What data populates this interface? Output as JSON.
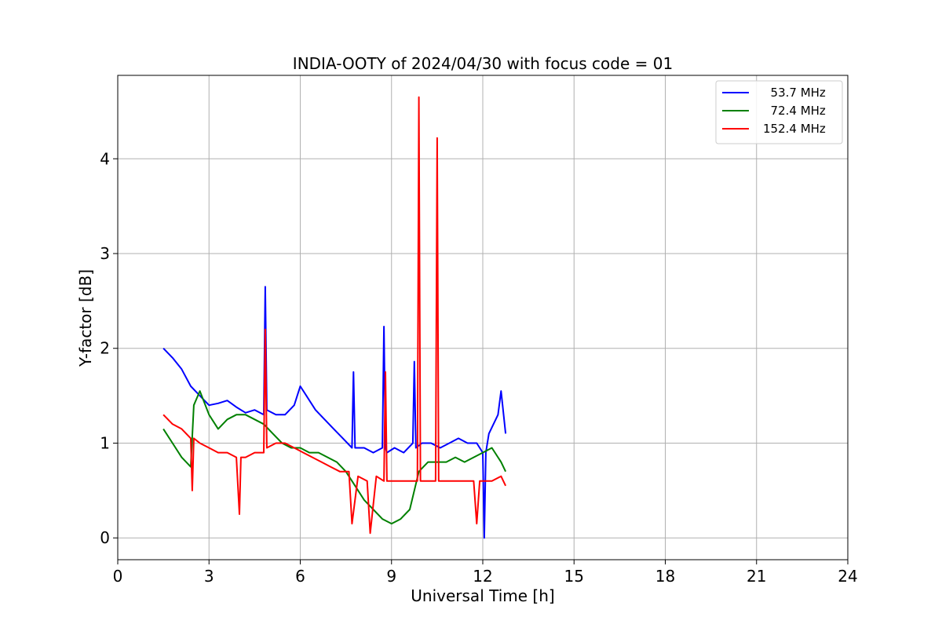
{
  "chart_data": {
    "type": "line",
    "title": "INDIA-OOTY of 2024/04/30 with focus code = 01",
    "xlabel": "Universal Time [h]",
    "ylabel": "Y-factor [dB]",
    "xlim": [
      0,
      24
    ],
    "ylim": [
      -0.23,
      4.88
    ],
    "xticks": [
      0,
      3,
      6,
      9,
      12,
      15,
      18,
      21,
      24
    ],
    "yticks": [
      0,
      1,
      2,
      3,
      4
    ],
    "grid": true,
    "legend_position": "top-right",
    "series": [
      {
        "name": "  53.7 MHz",
        "color": "#0000ff",
        "x": [
          1.5,
          1.8,
          2.1,
          2.4,
          2.7,
          3.0,
          3.3,
          3.6,
          3.9,
          4.2,
          4.5,
          4.8,
          4.85,
          4.9,
          5.2,
          5.5,
          5.8,
          6.0,
          6.2,
          6.5,
          6.8,
          7.1,
          7.4,
          7.7,
          7.75,
          7.8,
          8.1,
          8.4,
          8.7,
          8.75,
          8.8,
          8.85,
          9.1,
          9.4,
          9.7,
          9.75,
          9.8,
          10.0,
          10.3,
          10.6,
          10.9,
          11.2,
          11.5,
          11.8,
          12.0,
          12.05,
          12.1,
          12.2,
          12.5,
          12.6,
          12.75
        ],
        "y": [
          2.0,
          1.9,
          1.78,
          1.6,
          1.5,
          1.4,
          1.42,
          1.45,
          1.38,
          1.32,
          1.35,
          1.3,
          2.65,
          1.35,
          1.3,
          1.3,
          1.4,
          1.6,
          1.5,
          1.35,
          1.25,
          1.15,
          1.05,
          0.95,
          1.75,
          0.95,
          0.95,
          0.9,
          0.95,
          2.23,
          0.95,
          0.9,
          0.95,
          0.9,
          1.0,
          1.86,
          0.95,
          1.0,
          1.0,
          0.95,
          1.0,
          1.05,
          1.0,
          1.0,
          0.9,
          0.0,
          0.9,
          1.1,
          1.3,
          1.55,
          1.1
        ]
      },
      {
        "name": "  72.4 MHz",
        "color": "#008000",
        "x": [
          1.5,
          1.8,
          2.1,
          2.4,
          2.5,
          2.7,
          3.0,
          3.3,
          3.6,
          3.9,
          4.2,
          4.5,
          4.8,
          5.1,
          5.4,
          5.7,
          6.0,
          6.3,
          6.6,
          6.9,
          7.2,
          7.5,
          7.8,
          8.1,
          8.4,
          8.7,
          9.0,
          9.3,
          9.6,
          9.9,
          10.2,
          10.5,
          10.8,
          11.1,
          11.4,
          11.7,
          12.0,
          12.3,
          12.6,
          12.75
        ],
        "y": [
          1.15,
          1.0,
          0.85,
          0.75,
          1.4,
          1.55,
          1.3,
          1.15,
          1.25,
          1.3,
          1.3,
          1.25,
          1.2,
          1.1,
          1.0,
          0.95,
          0.95,
          0.9,
          0.9,
          0.85,
          0.8,
          0.7,
          0.55,
          0.4,
          0.3,
          0.2,
          0.15,
          0.2,
          0.3,
          0.7,
          0.8,
          0.8,
          0.8,
          0.85,
          0.8,
          0.85,
          0.9,
          0.95,
          0.8,
          0.7
        ]
      },
      {
        "name": "152.4 MHz",
        "color": "#ff0000",
        "x": [
          1.5,
          1.8,
          2.1,
          2.4,
          2.45,
          2.5,
          2.7,
          3.0,
          3.3,
          3.6,
          3.9,
          4.0,
          4.05,
          4.2,
          4.5,
          4.8,
          4.85,
          4.9,
          5.2,
          5.5,
          5.8,
          6.1,
          6.4,
          6.7,
          7.0,
          7.3,
          7.6,
          7.7,
          7.9,
          8.2,
          8.3,
          8.5,
          8.75,
          8.8,
          8.85,
          9.1,
          9.4,
          9.7,
          9.85,
          9.9,
          9.95,
          10.2,
          10.45,
          10.5,
          10.55,
          10.8,
          11.1,
          11.4,
          11.7,
          11.8,
          11.9,
          12.0,
          12.3,
          12.6,
          12.75
        ],
        "y": [
          1.3,
          1.2,
          1.15,
          1.05,
          0.5,
          1.05,
          1.0,
          0.95,
          0.9,
          0.9,
          0.85,
          0.25,
          0.85,
          0.85,
          0.9,
          0.9,
          2.2,
          0.95,
          1.0,
          1.0,
          0.95,
          0.9,
          0.85,
          0.8,
          0.75,
          0.7,
          0.7,
          0.15,
          0.65,
          0.6,
          0.05,
          0.65,
          0.6,
          1.75,
          0.6,
          0.6,
          0.6,
          0.6,
          0.6,
          4.65,
          0.6,
          0.6,
          0.6,
          4.22,
          0.6,
          0.6,
          0.6,
          0.6,
          0.6,
          0.15,
          0.6,
          0.6,
          0.6,
          0.65,
          0.55
        ]
      }
    ]
  }
}
